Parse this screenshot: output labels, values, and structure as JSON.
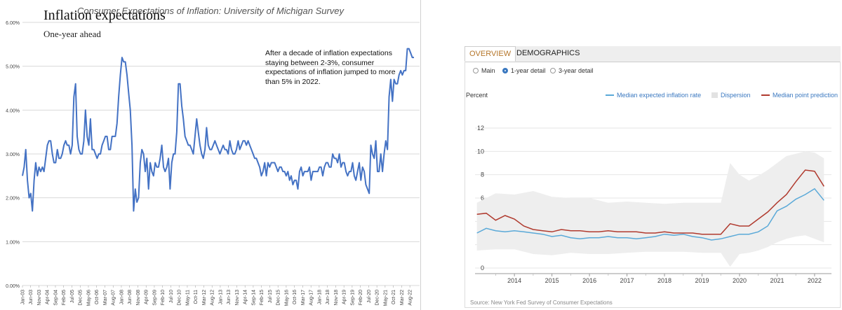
{
  "left_chart": {
    "title": "Consumer Expectations of Inflation: University of Michigan Survey",
    "annotation": "After a decade of inflation expectations staying between 2-3%, consumer expectations of inflation jumped to more than 5% in 2022.",
    "colors": {
      "line": "#4472c4",
      "grid": "#d9d9d9"
    }
  },
  "right_panel": {
    "title": "Inflation expectations",
    "subtitle": "One-year ahead",
    "tabs": [
      {
        "label": "OVERVIEW",
        "active": true
      },
      {
        "label": "DEMOGRAPHICS",
        "active": false
      }
    ],
    "radios": [
      {
        "label": "Main",
        "selected": false
      },
      {
        "label": "1-year detail",
        "selected": true
      },
      {
        "label": "3-year detail",
        "selected": false
      }
    ],
    "source": "Source: New York Fed Survey of Consumer Expectations",
    "colors": {
      "median": "#5aa9d8",
      "point": "#b03a2e",
      "band": "#eeeeee",
      "accent": "#b5762a"
    }
  },
  "chart_data": [
    {
      "type": "line",
      "title": "Consumer Expectations of Inflation: University of Michigan Survey",
      "xlabel": "",
      "ylabel": "",
      "ylim": [
        0,
        6
      ],
      "y_ticks": [
        "0.00%",
        "1.00%",
        "2.00%",
        "3.00%",
        "4.00%",
        "5.00%",
        "6.00%"
      ],
      "x_tick_labels": [
        "Jan-03",
        "Jun-03",
        "Nov-03",
        "Apr-04",
        "Sep-04",
        "Feb-05",
        "Jul-05",
        "Dec-05",
        "May-06",
        "Oct-06",
        "Mar-07",
        "Aug-07",
        "Jan-08",
        "Jun-08",
        "Nov-08",
        "Apr-09",
        "Sep-09",
        "Feb-10",
        "Jul-10",
        "Dec-10",
        "May-11",
        "Oct-11",
        "Mar-12",
        "Aug-12",
        "Jan-13",
        "Jun-13",
        "Nov-13",
        "Apr-14",
        "Sep-14",
        "Feb-15",
        "Jul-15",
        "Dec-15",
        "May-16",
        "Oct-16",
        "Mar-17",
        "Aug-17",
        "Jan-18",
        "Jun-18",
        "Nov-18",
        "Apr-19",
        "Sep-19",
        "Feb-20",
        "Jul-20",
        "Dec-20",
        "May-21",
        "Oct-21",
        "Mar-22",
        "Aug-22"
      ],
      "grid": true,
      "series": [
        {
          "values": [
            2.5,
            2.7,
            3.1,
            2.4,
            2.0,
            2.1,
            1.7,
            2.4,
            2.8,
            2.5,
            2.7,
            2.6,
            2.7,
            2.6,
            2.9,
            3.2,
            3.3,
            3.3,
            3.0,
            2.8,
            2.8,
            3.1,
            2.9,
            2.9,
            3.0,
            3.2,
            3.3,
            3.2,
            3.2,
            3.0,
            3.2,
            4.3,
            4.6,
            3.4,
            3.1,
            3.0,
            3.0,
            3.3,
            4.0,
            3.4,
            3.2,
            3.8,
            3.1,
            3.1,
            3.0,
            2.9,
            3.0,
            3.0,
            3.2,
            3.3,
            3.4,
            3.4,
            3.1,
            3.1,
            3.4,
            3.4,
            3.4,
            3.7,
            4.3,
            4.8,
            5.2,
            5.1,
            5.1,
            4.8,
            4.4,
            4.0,
            3.2,
            1.7,
            2.2,
            1.9,
            2.0,
            2.8,
            3.1,
            3.0,
            2.6,
            2.9,
            2.2,
            2.8,
            2.6,
            2.5,
            2.8,
            2.7,
            2.7,
            2.9,
            3.2,
            2.7,
            2.6,
            2.7,
            2.9,
            2.2,
            2.8,
            3.0,
            3.0,
            3.5,
            4.6,
            4.6,
            4.1,
            3.8,
            3.4,
            3.3,
            3.2,
            3.2,
            3.1,
            3.0,
            3.4,
            3.8,
            3.5,
            3.2,
            3.0,
            2.9,
            3.1,
            3.6,
            3.2,
            3.1,
            3.1,
            3.2,
            3.3,
            3.2,
            3.1,
            3.0,
            3.1,
            3.2,
            3.1,
            3.1,
            3.0,
            3.3,
            3.1,
            3.0,
            3.0,
            3.1,
            3.3,
            3.1,
            3.2,
            3.3,
            3.3,
            3.2,
            3.3,
            3.2,
            3.1,
            3.0,
            2.9,
            2.9,
            2.8,
            2.7,
            2.5,
            2.6,
            2.8,
            2.5,
            2.8,
            2.7,
            2.8,
            2.8,
            2.8,
            2.7,
            2.6,
            2.7,
            2.7,
            2.6,
            2.6,
            2.5,
            2.6,
            2.4,
            2.5,
            2.3,
            2.4,
            2.4,
            2.2,
            2.6,
            2.7,
            2.5,
            2.6,
            2.6,
            2.6,
            2.7,
            2.4,
            2.6,
            2.6,
            2.6,
            2.6,
            2.7,
            2.7,
            2.5,
            2.7,
            2.8,
            2.8,
            2.7,
            2.7,
            3.0,
            2.9,
            2.9,
            2.8,
            3.0,
            2.7,
            2.8,
            2.8,
            2.6,
            2.5,
            2.6,
            2.6,
            2.8,
            2.5,
            2.4,
            2.6,
            2.8,
            2.4,
            2.7,
            2.6,
            2.3,
            2.2,
            2.1,
            3.2,
            3.0,
            2.9,
            3.3,
            2.6,
            2.6,
            3.0,
            2.6,
            3.0,
            3.3,
            3.1,
            4.3,
            4.7,
            4.2,
            4.7,
            4.6,
            4.6,
            4.8,
            4.9,
            4.8,
            4.9,
            4.9,
            5.4,
            5.4,
            5.3,
            5.2,
            5.2
          ]
        }
      ]
    },
    {
      "type": "line",
      "title": "Inflation expectations",
      "xlabel": "",
      "ylabel": "Percent",
      "ylim": [
        0,
        12
      ],
      "y_ticks": [
        0,
        2,
        4,
        6,
        8,
        10,
        12
      ],
      "x_tick_labels": [
        "2014",
        "2015",
        "2016",
        "2017",
        "2018",
        "2019",
        "2020",
        "2021",
        "2022"
      ],
      "xlim": [
        2013.45,
        2022.95
      ],
      "legend": "top",
      "grid": true,
      "series": [
        {
          "name": "Median expected inflation rate",
          "x": [
            2013.5,
            2013.75,
            2014.0,
            2014.25,
            2014.5,
            2014.75,
            2015.0,
            2015.25,
            2015.5,
            2015.75,
            2016.0,
            2016.25,
            2016.5,
            2016.75,
            2017.0,
            2017.25,
            2017.5,
            2017.75,
            2018.0,
            2018.25,
            2018.5,
            2018.75,
            2019.0,
            2019.25,
            2019.5,
            2019.75,
            2020.0,
            2020.25,
            2020.5,
            2020.75,
            2021.0,
            2021.25,
            2021.5,
            2021.75,
            2022.0,
            2022.25,
            2022.5,
            2022.75
          ],
          "values": [
            3.0,
            3.4,
            3.2,
            3.1,
            3.2,
            3.1,
            3.0,
            2.9,
            2.7,
            2.8,
            2.6,
            2.5,
            2.6,
            2.6,
            2.7,
            2.6,
            2.6,
            2.5,
            2.6,
            2.7,
            2.9,
            2.8,
            2.9,
            2.7,
            2.6,
            2.4,
            2.5,
            2.7,
            2.9,
            2.9,
            3.1,
            3.6,
            4.9,
            5.3,
            5.9,
            6.3,
            6.8,
            5.8
          ]
        },
        {
          "name": "Dispersion",
          "x": [
            2013.5,
            2014.0,
            2014.5,
            2015.0,
            2015.5,
            2016.0,
            2016.5,
            2017.0,
            2017.5,
            2018.0,
            2018.5,
            2019.0,
            2019.5,
            2020.0,
            2020.25,
            2020.5,
            2020.75,
            2021.0,
            2021.25,
            2021.5,
            2021.75,
            2022.0,
            2022.25,
            2022.5,
            2022.75
          ],
          "low": [
            1.5,
            1.6,
            1.6,
            1.2,
            1.1,
            1.3,
            1.2,
            1.2,
            1.3,
            1.4,
            1.4,
            1.4,
            1.3,
            1.3,
            0.1,
            1.2,
            1.3,
            1.5,
            1.8,
            2.2,
            2.5,
            2.7,
            2.8,
            2.5,
            2.2
          ],
          "high": [
            5.6,
            6.4,
            6.3,
            6.6,
            6.1,
            6.0,
            6.0,
            5.6,
            5.7,
            5.6,
            5.5,
            5.6,
            5.6,
            5.6,
            9.0,
            8.0,
            7.5,
            7.9,
            8.4,
            9.0,
            9.6,
            9.8,
            10.0,
            9.9,
            9.4
          ]
        },
        {
          "name": "Median point prediction",
          "x": [
            2013.5,
            2013.75,
            2014.0,
            2014.25,
            2014.5,
            2014.75,
            2015.0,
            2015.25,
            2015.5,
            2015.75,
            2016.0,
            2016.25,
            2016.5,
            2016.75,
            2017.0,
            2017.25,
            2017.5,
            2017.75,
            2018.0,
            2018.25,
            2018.5,
            2018.75,
            2019.0,
            2019.25,
            2019.5,
            2019.75,
            2020.0,
            2020.25,
            2020.5,
            2020.75,
            2021.0,
            2021.25,
            2021.5,
            2021.75,
            2022.0,
            2022.25,
            2022.5,
            2022.75
          ],
          "values": [
            4.6,
            4.7,
            4.1,
            4.5,
            4.2,
            3.6,
            3.3,
            3.2,
            3.1,
            3.3,
            3.2,
            3.2,
            3.1,
            3.1,
            3.2,
            3.1,
            3.1,
            3.1,
            3.0,
            3.0,
            3.1,
            3.0,
            3.0,
            3.0,
            2.9,
            2.9,
            2.9,
            3.8,
            3.6,
            3.6,
            4.2,
            4.8,
            5.6,
            6.3,
            7.4,
            8.4,
            8.3,
            7.0
          ]
        }
      ]
    }
  ]
}
